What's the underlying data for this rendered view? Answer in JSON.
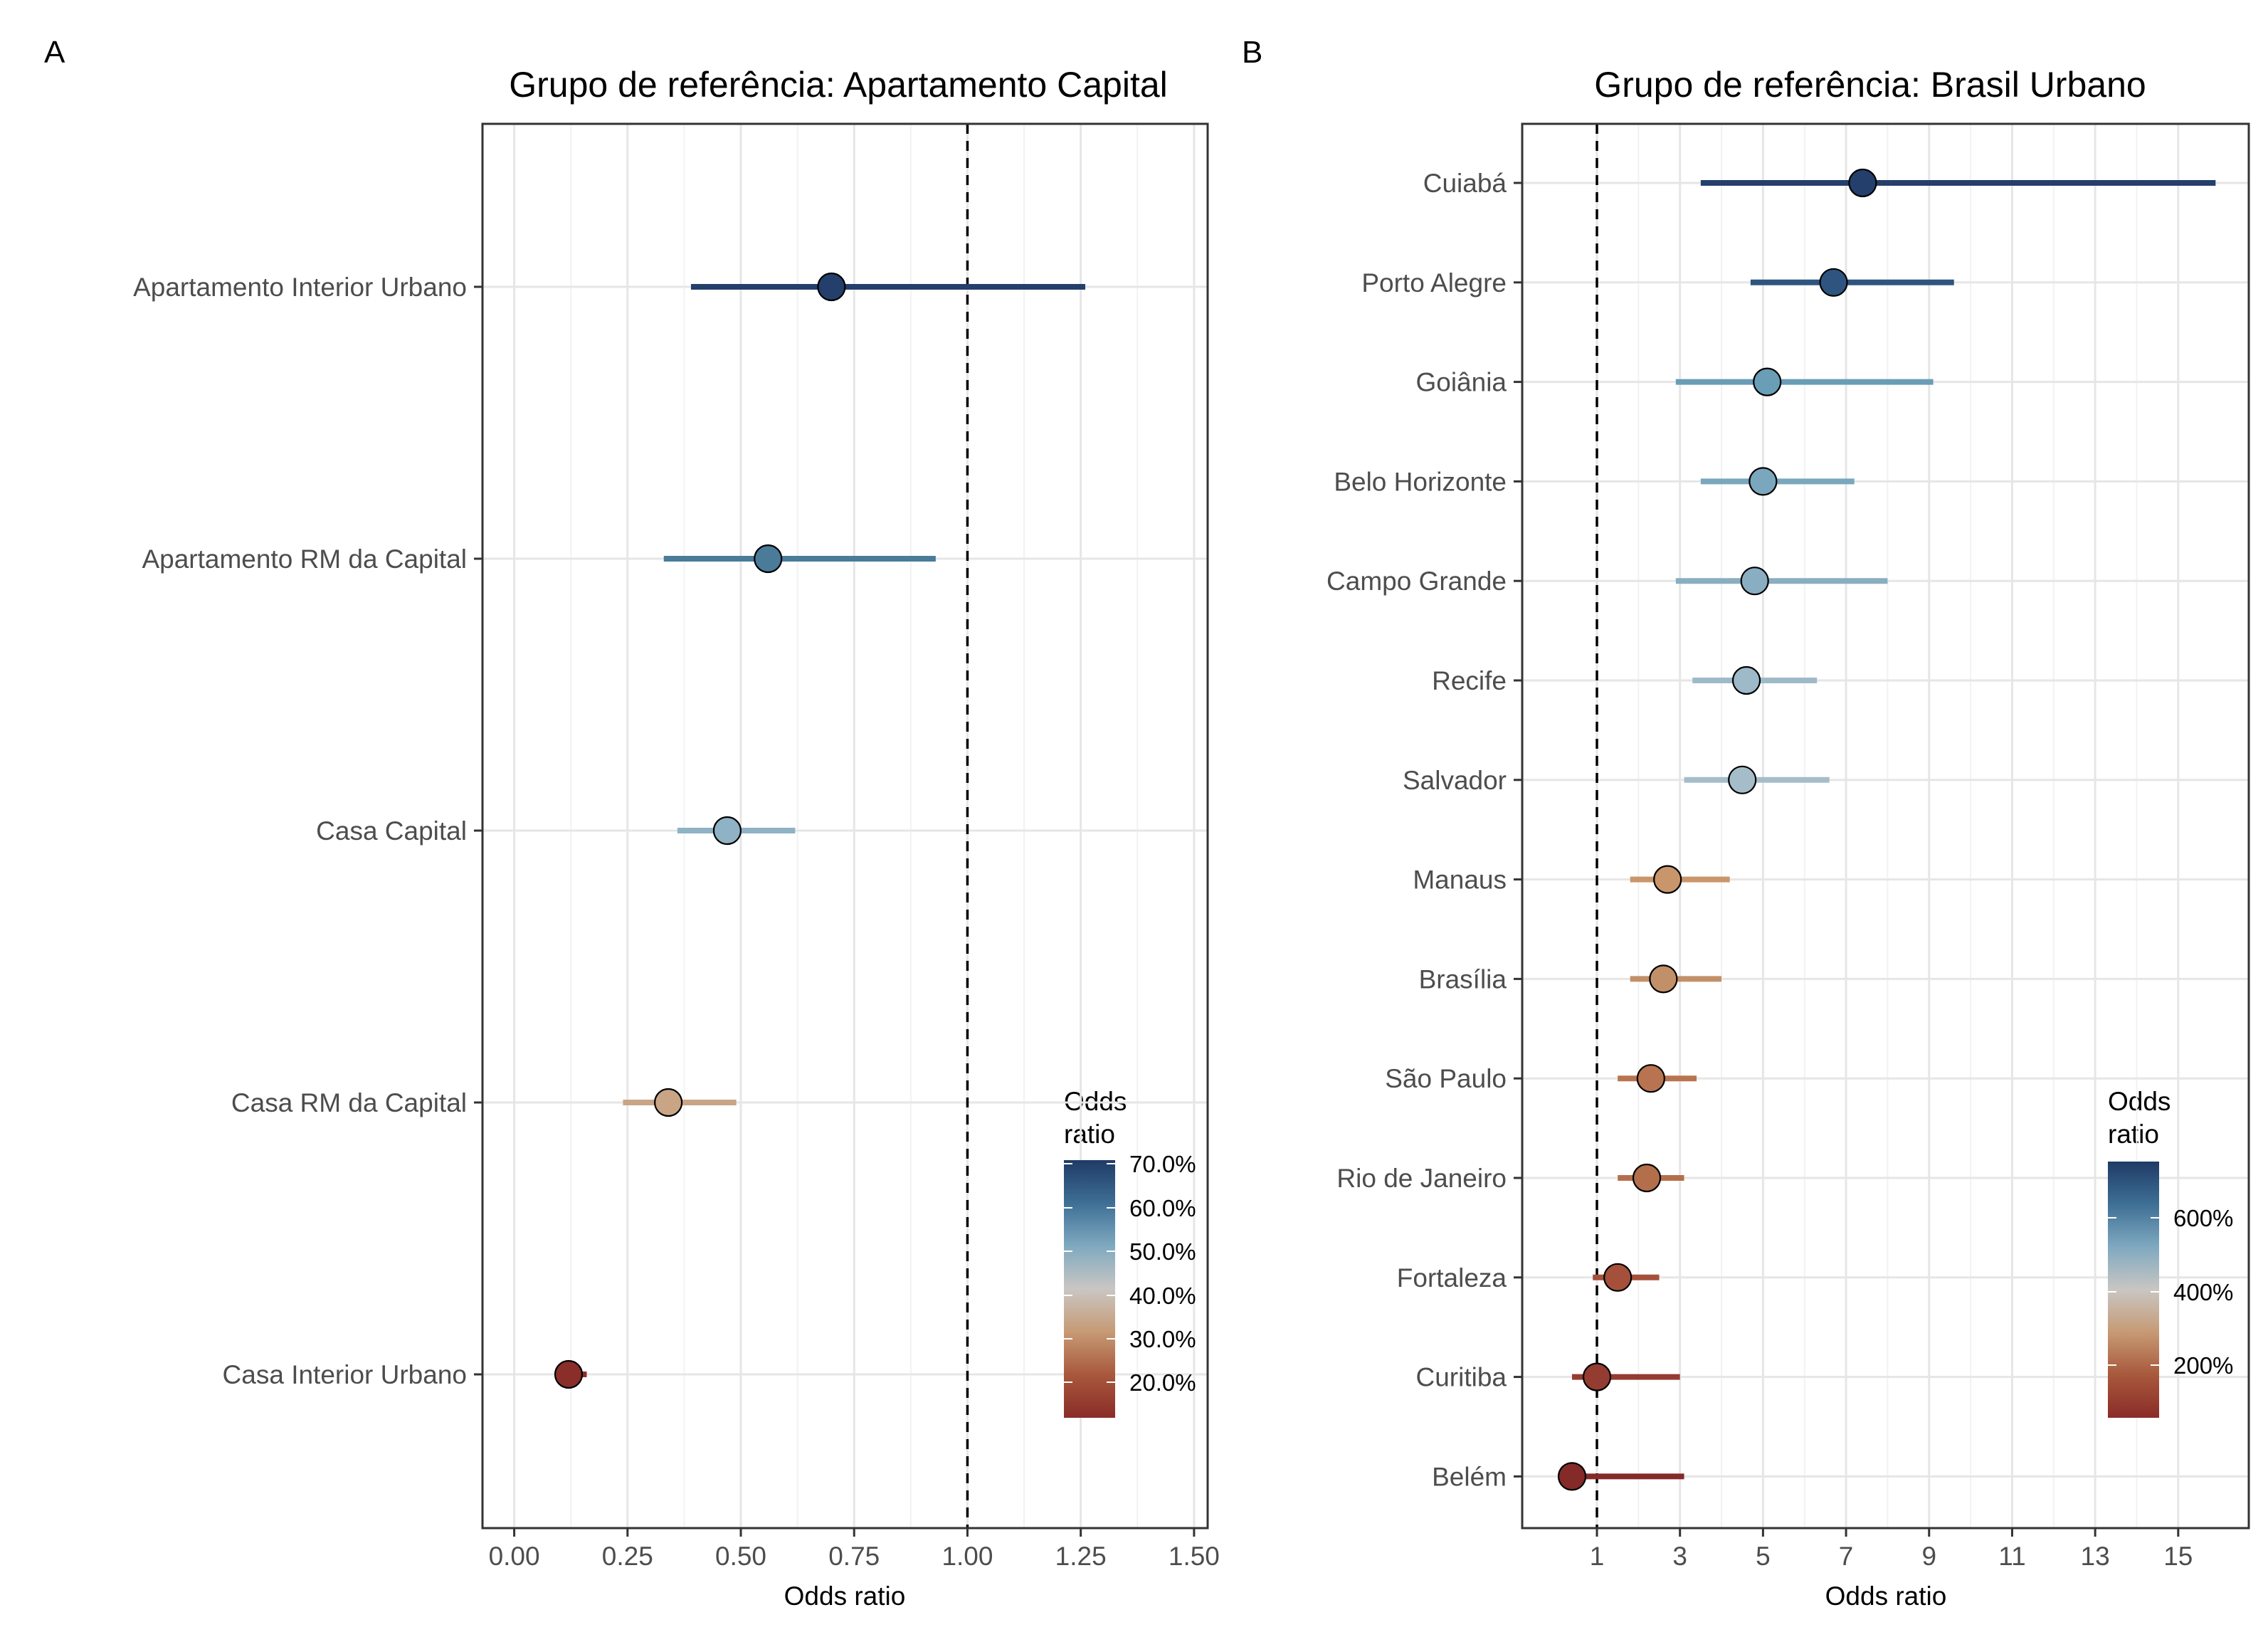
{
  "chart_data": [
    {
      "panel_tag": "A",
      "type": "scatter",
      "subtype": "forest-plot",
      "title": "Grupo de referência: Apartamento Capital",
      "xlabel": "Odds ratio",
      "ylabel": "",
      "xlim": [
        -0.07,
        1.53
      ],
      "xticks": [
        0.0,
        0.25,
        0.5,
        0.75,
        1.0,
        1.25,
        1.5
      ],
      "xtick_labels": [
        "0.00",
        "0.25",
        "0.50",
        "0.75",
        "1.00",
        "1.25",
        "1.50"
      ],
      "reference_line": 1.0,
      "grid": true,
      "categories": [
        "Apartamento Interior Urbano",
        "Apartamento RM da Capital",
        "Casa Capital",
        "Casa RM da Capital",
        "Casa Interior Urbano"
      ],
      "values": [
        0.7,
        0.56,
        0.47,
        0.34,
        0.12
      ],
      "ci_low": [
        0.39,
        0.33,
        0.36,
        0.24,
        0.09
      ],
      "ci_high": [
        1.26,
        0.93,
        0.62,
        0.49,
        0.16
      ],
      "colors": [
        "#243f6b",
        "#4a7b99",
        "#8fb2c4",
        "#c9a586",
        "#8a2e2a"
      ],
      "legend": {
        "title": "Odds\nratio",
        "position": "bottom-right-inside",
        "labels": [
          "70.0%",
          "60.0%",
          "50.0%",
          "40.0%",
          "30.0%",
          "20.0%"
        ],
        "colorscale": [
          "#1f3b66",
          "#3e6f95",
          "#7fa9c0",
          "#c9c6c3",
          "#c69a74",
          "#a8583c",
          "#8a2c28"
        ]
      }
    },
    {
      "panel_tag": "B",
      "type": "scatter",
      "subtype": "forest-plot",
      "title": "Grupo de referência: Brasil Urbano",
      "xlabel": "Odds ratio",
      "ylabel": "",
      "xlim": [
        -0.8,
        16.7
      ],
      "xticks": [
        1,
        3,
        5,
        7,
        9,
        11,
        13,
        15
      ],
      "xtick_labels": [
        "1",
        "3",
        "5",
        "7",
        "9",
        "11",
        "13",
        "15"
      ],
      "reference_line": 1,
      "grid": true,
      "categories": [
        "Cuiabá",
        "Porto Alegre",
        "Goiânia",
        "Belo Horizonte",
        "Campo Grande",
        "Recife",
        "Salvador",
        "Manaus",
        "Brasília",
        "São Paulo",
        "Rio de Janeiro",
        "Fortaleza",
        "Curitiba",
        "Belém"
      ],
      "values": [
        7.4,
        6.7,
        5.1,
        5.0,
        4.8,
        4.6,
        4.5,
        2.7,
        2.6,
        2.3,
        2.2,
        1.5,
        1.0,
        0.4
      ],
      "ci_low": [
        3.5,
        4.7,
        2.9,
        3.5,
        2.9,
        3.3,
        3.1,
        1.8,
        1.8,
        1.5,
        1.5,
        0.9,
        0.4,
        0.3
      ],
      "ci_high": [
        15.9,
        9.6,
        9.1,
        7.2,
        8.0,
        6.3,
        6.6,
        4.2,
        4.0,
        3.4,
        3.1,
        2.5,
        3.0,
        3.1
      ],
      "colors": [
        "#243f6b",
        "#2e5580",
        "#6a9db6",
        "#7aa7bd",
        "#89aec1",
        "#9ebac8",
        "#a5bdc8",
        "#c9966b",
        "#c29068",
        "#b87450",
        "#b36f4c",
        "#a5503a",
        "#943c31",
        "#842a28"
      ],
      "legend": {
        "title": "Odds\nratio",
        "position": "bottom-right-inside",
        "labels": [
          "600%",
          "400%",
          "200%"
        ],
        "colorscale": [
          "#1f3b66",
          "#3e6f95",
          "#7fa9c0",
          "#c9c6c3",
          "#c69a74",
          "#a8583c",
          "#8a2c28"
        ]
      }
    }
  ]
}
